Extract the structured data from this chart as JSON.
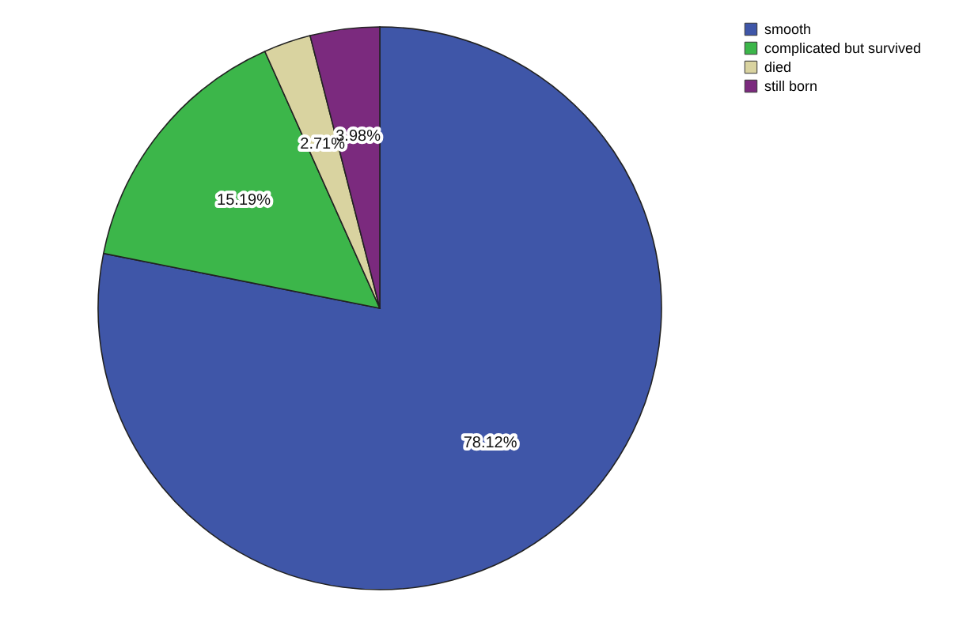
{
  "chart_data": {
    "type": "pie",
    "categories": [
      "smooth",
      "complicated but survived",
      "died",
      "still born"
    ],
    "values": [
      78.12,
      15.19,
      2.71,
      3.98
    ],
    "colors": [
      "#3f56a8",
      "#3cb64a",
      "#d9d3a0",
      "#7b2a7e"
    ],
    "value_labels": [
      "78.12%",
      "15.19%",
      "2.71%",
      "3.98%"
    ],
    "legend": "top right"
  }
}
